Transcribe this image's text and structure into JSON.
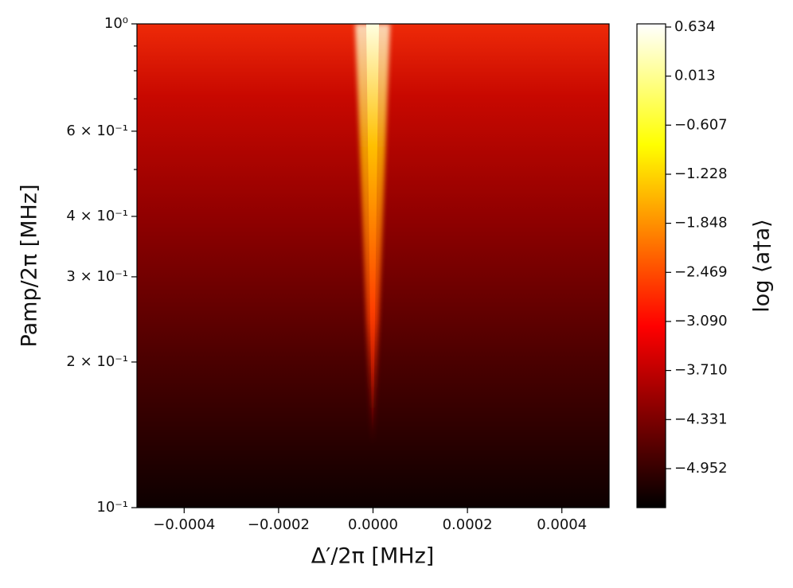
{
  "chart_data": {
    "type": "heatmap",
    "xlabel": "Δ′/2π  [MHz]",
    "ylabel": "Pamp/2π [MHz]",
    "colorbar_label": "log ⟨a†a⟩",
    "xlim": [
      -0.0005,
      0.0005
    ],
    "xticks": [
      {
        "value": -0.0004,
        "label": "−0.0004"
      },
      {
        "value": -0.0002,
        "label": "−0.0002"
      },
      {
        "value": 0,
        "label": "0.0000"
      },
      0.0002,
      0.0004
    ],
    "ylim": [
      0.1,
      1
    ],
    "yscale": "log",
    "yticks": [
      {
        "value": 0.1,
        "label": "10⁻¹"
      },
      {
        "value": 0.2,
        "label": "2 × 10⁻¹"
      },
      {
        "value": 0.3,
        "label": "3 × 10⁻¹"
      },
      {
        "value": 0.4,
        "label": "4 × 10⁻¹"
      },
      {
        "value": 0.6,
        "label": "6 × 10⁻¹"
      },
      {
        "value": 1,
        "label": "10⁰"
      }
    ],
    "yminorticks": [
      0.5,
      0.7,
      0.8,
      0.9
    ],
    "colormap": "hot",
    "clim": [
      -5.445,
      0.674
    ],
    "cticks": [
      0.634,
      0.013,
      {
        "value": -0.607,
        "label": "−0.607"
      },
      {
        "value": -1.228,
        "label": "−1.228"
      },
      {
        "value": -1.848,
        "label": "−1.848"
      },
      {
        "value": -2.469,
        "label": "−2.469"
      },
      {
        "value": -3.09,
        "label": "−3.090"
      },
      {
        "value": -3.71,
        "label": "−3.710"
      },
      {
        "value": -4.331,
        "label": "−4.331"
      },
      {
        "value": -4.952,
        "label": "−4.952"
      }
    ]
  }
}
